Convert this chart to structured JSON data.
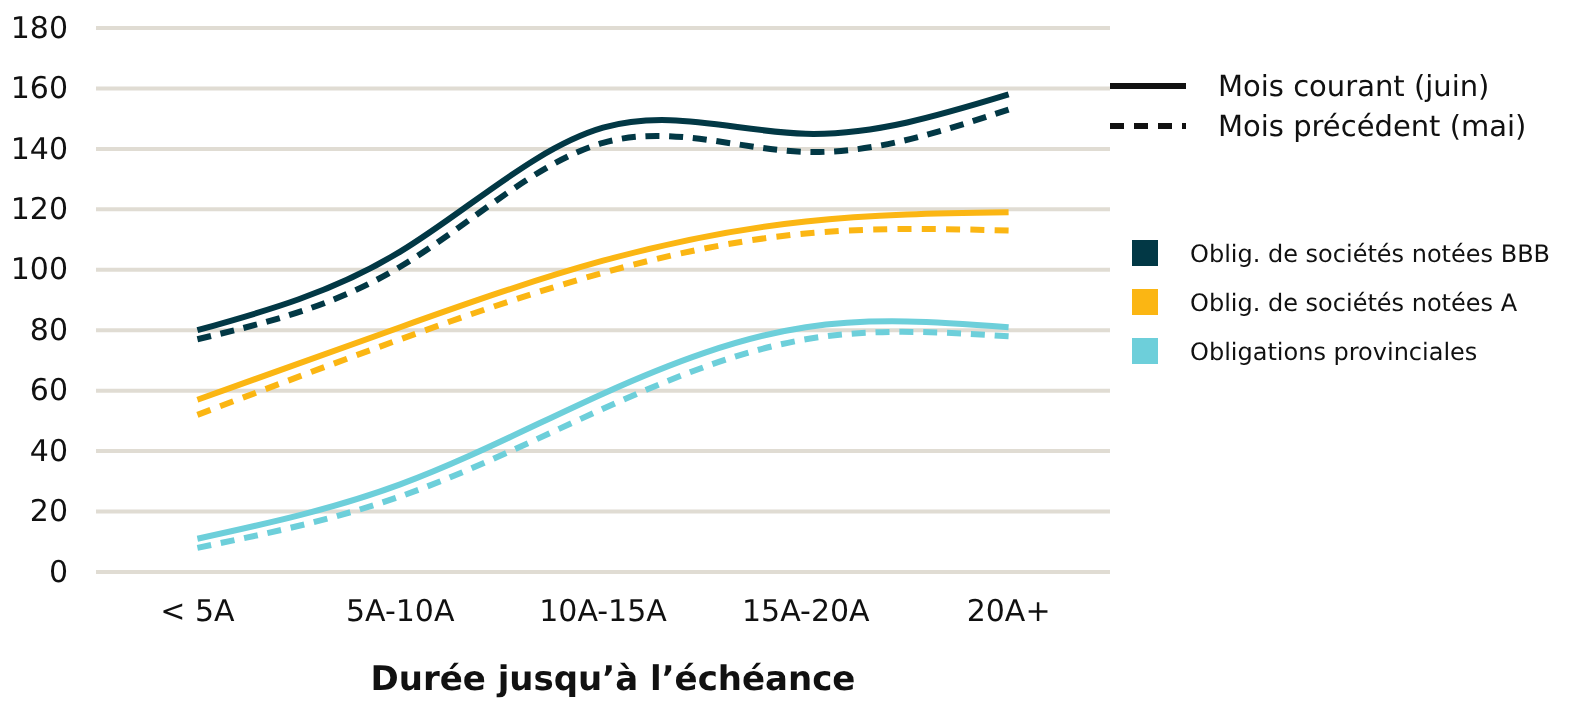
{
  "chart_data": {
    "type": "line",
    "xlabel": "Durée jusqu’à l’échéance",
    "categories": [
      "< 5A",
      "5A-10A",
      "10A-15A",
      "15A-20A",
      "20A+"
    ],
    "ylim": [
      0,
      180
    ],
    "yticks": [
      0,
      20,
      40,
      60,
      80,
      100,
      120,
      140,
      160,
      180
    ],
    "grid": "y",
    "legend": "right",
    "marker": "none",
    "annotations": [
      "Mois courant (juin)",
      "Mois précédent (mai)"
    ],
    "series": [
      {
        "name": "Oblig. de sociétés notées BBB",
        "color": "#023845",
        "line_style": "solid",
        "values": [
          80,
          106,
          147,
          145,
          158
        ]
      },
      {
        "name": "Oblig. de sociétés notées A",
        "color": "#fbb613",
        "line_style": "solid",
        "values": [
          57,
          81,
          103,
          116,
          119
        ]
      },
      {
        "name": "Obligations provinciales",
        "color": "#6dcfda",
        "line_style": "solid",
        "values": [
          11,
          29,
          59,
          81,
          81
        ]
      },
      {
        "color": "#023845",
        "line_style": "dashed",
        "values": [
          77,
          101,
          142,
          139,
          153
        ]
      },
      {
        "color": "#fbb613",
        "line_style": "dashed",
        "values": [
          52,
          77,
          99,
          112,
          113
        ]
      },
      {
        "color": "#6dcfda",
        "line_style": "dashed",
        "values": [
          8,
          25,
          54,
          77,
          78
        ]
      }
    ]
  }
}
